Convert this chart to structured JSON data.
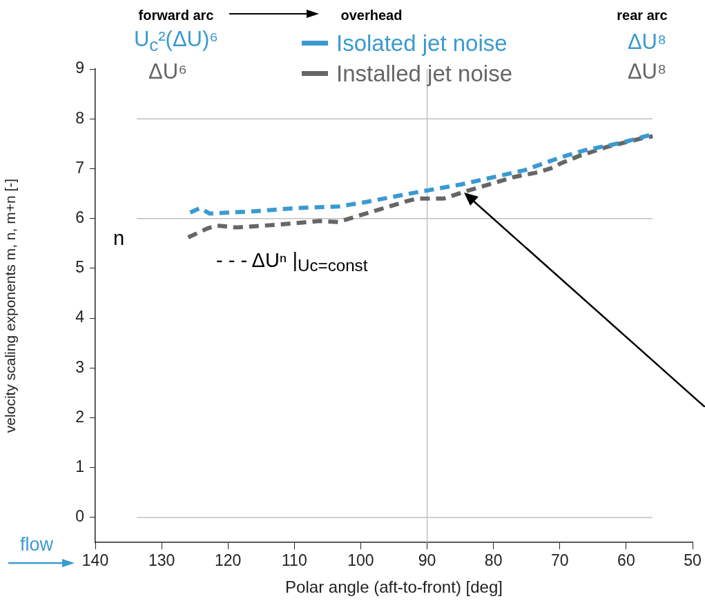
{
  "chart_data": {
    "type": "line",
    "xlabel": "Polar angle (aft-to-front) [deg]",
    "ylabel": "velocity scaling exponents m, n, m+n [-]",
    "xlim": [
      140,
      50
    ],
    "xticks": [
      140,
      130,
      120,
      110,
      100,
      90,
      80,
      70,
      60,
      50
    ],
    "ylim": [
      -0.5,
      9
    ],
    "yticks": [
      0,
      1,
      2,
      3,
      4,
      5,
      6,
      7,
      8,
      9
    ],
    "grid": false,
    "legend": "top",
    "line_style": "dashed",
    "marker": "none",
    "series": [
      {
        "name": "Isolated jet noise",
        "color": "#3b9ad0",
        "x": [
          125.7,
          124.2,
          122.8,
          116.6,
          109.6,
          103.4,
          99.2,
          93.0,
          85.0,
          75.3,
          69.8,
          66.2,
          60.7,
          56.0
        ],
        "values": [
          6.12,
          6.21,
          6.1,
          6.14,
          6.21,
          6.24,
          6.33,
          6.49,
          6.68,
          6.97,
          7.23,
          7.37,
          7.52,
          7.69
        ]
      },
      {
        "name": "Installed jet noise",
        "color": "#666666",
        "x": [
          126.0,
          123.1,
          121.8,
          118.7,
          113.1,
          106.2,
          103.4,
          99.2,
          93.0,
          91.5,
          87.5,
          84.3,
          77.0,
          73.2,
          71.1,
          69.8,
          67.0,
          62.8,
          57.3,
          56.0
        ],
        "values": [
          5.62,
          5.8,
          5.86,
          5.82,
          5.87,
          5.95,
          5.93,
          6.1,
          6.35,
          6.4,
          6.4,
          6.54,
          6.83,
          6.93,
          7.02,
          7.11,
          7.26,
          7.44,
          7.62,
          7.65
        ]
      }
    ],
    "ref_lines": [
      {
        "axis": "y",
        "value": 0,
        "color": "#c0c0c0"
      },
      {
        "axis": "y",
        "value": 6,
        "color": "#c0c0c0"
      },
      {
        "axis": "y",
        "value": 8,
        "color": "#c0c0c0"
      },
      {
        "axis": "x",
        "value": 90,
        "color": "#c0c0c0"
      }
    ],
    "annotations": [
      "forward arc",
      "overhead",
      "rear arc",
      "U$_{c}$²(ΔU)⁶",
      "ΔU⁶",
      "ΔU⁸",
      "ΔU⁸",
      "n",
      "- - - ΔUⁿ |$_{Uc=const}$",
      "flow"
    ]
  }
}
